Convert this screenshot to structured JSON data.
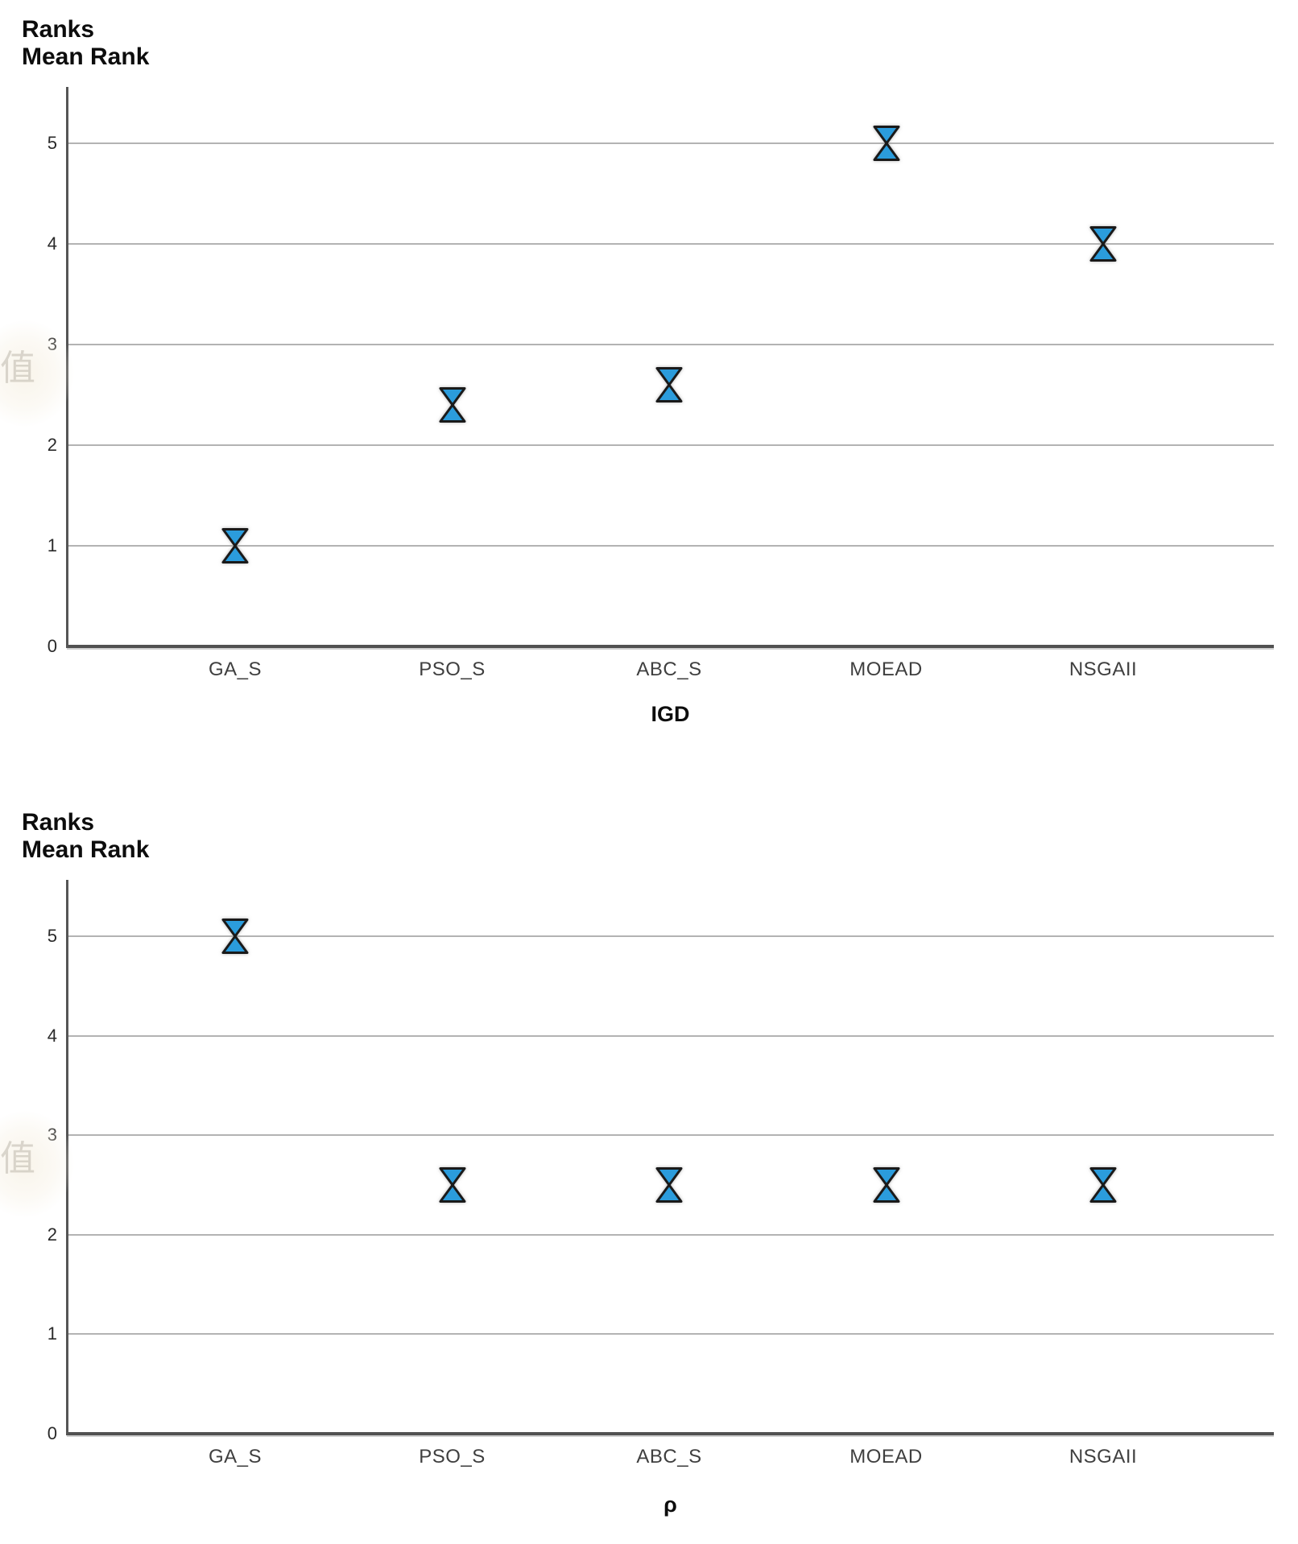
{
  "watermark": {
    "glyph": "值"
  },
  "chart_data": [
    {
      "type": "scatter",
      "title": "Ranks",
      "subtitle": "Mean Rank",
      "xlabel": "IGD",
      "ylabel": "Mean Rank",
      "categories": [
        "GA_S",
        "PSO_S",
        "ABC_S",
        "MOEAD",
        "NSGAII"
      ],
      "values": [
        1.0,
        2.4,
        2.6,
        5.0,
        4.0
      ],
      "y_tick_values": [
        0,
        1,
        2,
        3,
        4,
        5
      ],
      "ylim": [
        0,
        5.56
      ],
      "grid": "horizontal",
      "legend": "none",
      "marker": "hourglass",
      "marker_color": "#2B9CDC",
      "marker_outline": "#1a1a1a",
      "gridline_color": "#b3b3b3",
      "axis_color": "#515151"
    },
    {
      "type": "scatter",
      "title": "Ranks",
      "subtitle": "Mean Rank",
      "xlabel": "ρ",
      "ylabel": "Mean Rank",
      "categories": [
        "GA_S",
        "PSO_S",
        "ABC_S",
        "MOEAD",
        "NSGAII"
      ],
      "values": [
        5.0,
        2.5,
        2.5,
        2.5,
        2.5
      ],
      "y_tick_values": [
        0,
        1,
        2,
        3,
        4,
        5
      ],
      "ylim": [
        0,
        5.56
      ],
      "grid": "horizontal",
      "legend": "none",
      "marker": "hourglass",
      "marker_color": "#2B9CDC",
      "marker_outline": "#1a1a1a",
      "gridline_color": "#b3b3b3",
      "axis_color": "#515151"
    }
  ]
}
